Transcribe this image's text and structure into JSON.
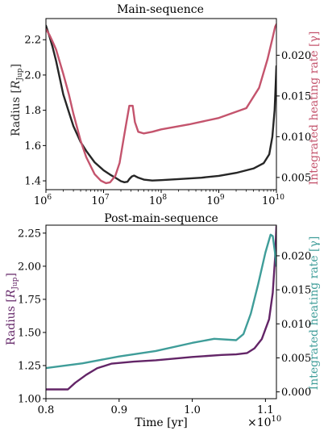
{
  "colors": {
    "black_line": "#262626",
    "pink_line": "#c4546d",
    "purple_line": "#632567",
    "teal_line": "#3f9d99",
    "axis": "#000000"
  },
  "chart_data": [
    {
      "type": "line",
      "title": "Main-sequence",
      "xlabel": "",
      "ylabel": "Radius [R_Jup]",
      "ylabel_right": "Integrated heating rate [γ]",
      "x_scale": "log",
      "xlim": [
        1000000,
        10000000000
      ],
      "ylim": [
        1.35,
        2.32
      ],
      "ylim_right": [
        0.0035,
        0.0245
      ],
      "x_ticks": [
        {
          "value": 1000000,
          "label": "10^6"
        },
        {
          "value": 10000000,
          "label": "10^7"
        },
        {
          "value": 100000000,
          "label": "10^8"
        },
        {
          "value": 1000000000,
          "label": "10^9"
        },
        {
          "value": 10000000000,
          "label": "10^10"
        }
      ],
      "y_ticks": [
        "1.4",
        "1.6",
        "1.8",
        "2.0",
        "2.2"
      ],
      "y_ticks_right": [
        "0.005",
        "0.010",
        "0.015",
        "0.020"
      ],
      "grid": false,
      "series": [
        {
          "axis": "left",
          "color": "#262626",
          "points": [
            [
              1000000,
              2.28
            ],
            [
              1150000,
              2.22
            ],
            [
              1300000,
              2.16
            ],
            [
              1500000,
              2.08
            ],
            [
              2000000,
              1.89
            ],
            [
              2500000,
              1.79
            ],
            [
              3000000,
              1.71
            ],
            [
              4000000,
              1.62
            ],
            [
              5000000,
              1.57
            ],
            [
              7000000,
              1.505
            ],
            [
              10000000,
              1.46
            ],
            [
              13000000,
              1.435
            ],
            [
              16000000,
              1.418
            ],
            [
              20000000,
              1.398
            ],
            [
              23000000,
              1.392
            ],
            [
              26000000,
              1.395
            ],
            [
              28000000,
              1.41
            ],
            [
              31000000,
              1.425
            ],
            [
              34000000,
              1.43
            ],
            [
              40000000,
              1.418
            ],
            [
              50000000,
              1.407
            ],
            [
              70000000,
              1.402
            ],
            [
              100000000,
              1.404
            ],
            [
              200000000,
              1.41
            ],
            [
              500000000,
              1.418
            ],
            [
              1000000000,
              1.428
            ],
            [
              2000000000,
              1.445
            ],
            [
              4000000000,
              1.47
            ],
            [
              6000000000,
              1.5
            ],
            [
              7500000000,
              1.55
            ],
            [
              8500000000,
              1.65
            ],
            [
              9300000000,
              1.8
            ],
            [
              10000000000,
              2.05
            ]
          ]
        },
        {
          "axis": "right",
          "color": "#c4546d",
          "points": [
            [
              1000000,
              0.0232
            ],
            [
              1150000,
              0.0225
            ],
            [
              1300000,
              0.0217
            ],
            [
              1500000,
              0.0207
            ],
            [
              2000000,
              0.0177
            ],
            [
              2500000,
              0.0152
            ],
            [
              3000000,
              0.0128
            ],
            [
              4000000,
              0.0095
            ],
            [
              5000000,
              0.0075
            ],
            [
              7000000,
              0.0054
            ],
            [
              9000000,
              0.0046
            ],
            [
              11000000,
              0.0043
            ],
            [
              13000000,
              0.0044
            ],
            [
              16000000,
              0.0052
            ],
            [
              19000000,
              0.0068
            ],
            [
              22000000,
              0.0095
            ],
            [
              25000000,
              0.0118
            ],
            [
              28000000,
              0.0138
            ],
            [
              32000000,
              0.0138
            ],
            [
              35000000,
              0.0118
            ],
            [
              40000000,
              0.0106
            ],
            [
              50000000,
              0.0104
            ],
            [
              70000000,
              0.0106
            ],
            [
              100000000,
              0.0109
            ],
            [
              300000000,
              0.0115
            ],
            [
              1000000000,
              0.0123
            ],
            [
              3000000000,
              0.0135
            ],
            [
              5000000000,
              0.016
            ],
            [
              7000000000,
              0.0195
            ],
            [
              8500000000,
              0.022
            ],
            [
              9500000000,
              0.0235
            ],
            [
              10000000000,
              0.0238
            ]
          ]
        }
      ]
    },
    {
      "type": "line",
      "title": "Post-main-sequence",
      "xlabel": "Time [yr]",
      "x_multiplier": "×10^10",
      "ylabel": "Radius [R_Jup]",
      "ylabel_right": "Integrated heating rate [γ]",
      "x_scale": "linear",
      "xlim": [
        0.8,
        1.115
      ],
      "ylim": [
        1.0,
        2.31
      ],
      "ylim_right": [
        -0.001,
        0.0245
      ],
      "x_ticks": [
        "0.8",
        "0.9",
        "1.0",
        "1.1"
      ],
      "y_ticks": [
        "1.00",
        "1.25",
        "1.50",
        "1.75",
        "2.00",
        "2.25"
      ],
      "y_ticks_right": [
        "0.000",
        "0.005",
        "0.010",
        "0.015",
        "0.020"
      ],
      "grid": false,
      "series": [
        {
          "axis": "left",
          "color": "#632567",
          "points": [
            [
              0.8,
              1.07
            ],
            [
              0.83,
              1.07
            ],
            [
              0.84,
              1.12
            ],
            [
              0.855,
              1.18
            ],
            [
              0.87,
              1.23
            ],
            [
              0.89,
              1.265
            ],
            [
              0.92,
              1.28
            ],
            [
              0.95,
              1.29
            ],
            [
              1.0,
              1.315
            ],
            [
              1.04,
              1.33
            ],
            [
              1.06,
              1.335
            ],
            [
              1.075,
              1.345
            ],
            [
              1.085,
              1.38
            ],
            [
              1.095,
              1.45
            ],
            [
              1.105,
              1.6
            ],
            [
              1.11,
              1.8
            ],
            [
              1.113,
              2.05
            ],
            [
              1.115,
              2.3
            ]
          ]
        },
        {
          "axis": "right",
          "color": "#3f9d99",
          "points": [
            [
              0.8,
              0.0035
            ],
            [
              0.85,
              0.0042
            ],
            [
              0.9,
              0.0052
            ],
            [
              0.95,
              0.006
            ],
            [
              1.0,
              0.0072
            ],
            [
              1.03,
              0.0078
            ],
            [
              1.06,
              0.0076
            ],
            [
              1.07,
              0.0085
            ],
            [
              1.08,
              0.0115
            ],
            [
              1.09,
              0.0158
            ],
            [
              1.1,
              0.0205
            ],
            [
              1.107,
              0.0231
            ],
            [
              1.11,
              0.0229
            ],
            [
              1.113,
              0.0205
            ],
            [
              1.115,
              0.0185
            ]
          ]
        }
      ]
    }
  ]
}
